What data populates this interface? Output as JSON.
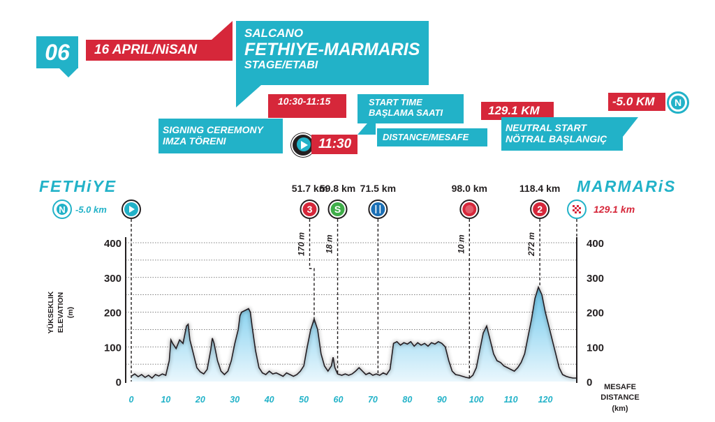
{
  "colors": {
    "teal": "#22b2c8",
    "red": "#d6273a",
    "dark": "#231f20",
    "fill_top": "#6ec8ec",
    "fill_bottom": "#eaf7fd",
    "green": "#3fae49",
    "blue": "#1b6fb5"
  },
  "header": {
    "stage_number": "06",
    "date": "16 APRIL/NiSAN",
    "sponsor": "SALCANO",
    "route": "FETHIYE-MARMARIS",
    "stage_label": "STAGE/ETABI"
  },
  "info": {
    "signing_time": "10:30-11:15",
    "signing_label_1": "SIGNING CEREMONY",
    "signing_label_2": "IMZA TÖRENI",
    "start_time": "11:30",
    "start_label_1": "START TIME",
    "start_label_2": "BAŞLAMA SAATI",
    "distance_value": "129.1 KM",
    "distance_label": "DISTANCE/MESAFE",
    "neutral_value": "-5.0 KM",
    "neutral_label_1": "NEUTRAL START",
    "neutral_label_2": "NÖTRAL BAŞLANGIÇ",
    "neutral_icon": "N"
  },
  "chart_data": {
    "type": "area",
    "start_city": "FETHiYE",
    "finish_city": "MARMARiS",
    "ylabel_1": "YÜKSEKLIK",
    "ylabel_2": "ELEVATION",
    "ylabel_3": "(m)",
    "xlabel_1": "MESAFE",
    "xlabel_2": "DISTANCE",
    "xlabel_3": "(km)",
    "xlim": [
      0,
      129.1
    ],
    "ylim": [
      0,
      400
    ],
    "x_ticks": [
      0,
      10,
      20,
      30,
      40,
      50,
      60,
      70,
      80,
      90,
      100,
      110,
      120
    ],
    "y_ticks": [
      0,
      100,
      200,
      300,
      400
    ],
    "gridlines": [
      50,
      100,
      150,
      200,
      250,
      300,
      350,
      400
    ],
    "neutral_label": "-5.0 km",
    "finish_label": "129.1 km",
    "markers": [
      {
        "type": "neutral",
        "x": -5.0,
        "symbol": "N"
      },
      {
        "type": "start",
        "x": 0,
        "symbol": "▶"
      },
      {
        "type": "climb",
        "x": 51.7,
        "label": "51.7 km",
        "symbol": "3",
        "alt_x": 53,
        "alt_label": "170 m",
        "alt": 170
      },
      {
        "type": "sprint",
        "x": 59.8,
        "label": "59.8 km",
        "symbol": "S",
        "alt_x": 60,
        "alt_label": "18 m",
        "alt": 18
      },
      {
        "type": "feed",
        "x": 71.5,
        "label": "71.5 km",
        "symbol": "🍴",
        "alt_x": 72,
        "alt_label": "",
        "alt": 20
      },
      {
        "type": "bonus",
        "x": 98.0,
        "label": "98.0 km",
        "symbol": "✸",
        "alt_x": 98,
        "alt_label": "10 m",
        "alt": 10
      },
      {
        "type": "climb",
        "x": 118.4,
        "label": "118.4 km",
        "symbol": "2",
        "alt_x": 118,
        "alt_label": "272 m",
        "alt": 272
      },
      {
        "type": "finish",
        "x": 129.1,
        "symbol": "▦"
      }
    ],
    "profile": [
      [
        0,
        15
      ],
      [
        1,
        22
      ],
      [
        2,
        14
      ],
      [
        3,
        20
      ],
      [
        4,
        12
      ],
      [
        5,
        18
      ],
      [
        6,
        10
      ],
      [
        7,
        20
      ],
      [
        8,
        16
      ],
      [
        9,
        22
      ],
      [
        10,
        18
      ],
      [
        11,
        60
      ],
      [
        11.5,
        120
      ],
      [
        12,
        110
      ],
      [
        13,
        95
      ],
      [
        14,
        120
      ],
      [
        15,
        110
      ],
      [
        16,
        160
      ],
      [
        16.5,
        165
      ],
      [
        17,
        120
      ],
      [
        18,
        80
      ],
      [
        19,
        40
      ],
      [
        20,
        28
      ],
      [
        21,
        22
      ],
      [
        22,
        35
      ],
      [
        23,
        90
      ],
      [
        23.5,
        125
      ],
      [
        24,
        110
      ],
      [
        25,
        60
      ],
      [
        26,
        30
      ],
      [
        27,
        20
      ],
      [
        28,
        30
      ],
      [
        29,
        60
      ],
      [
        30,
        110
      ],
      [
        31,
        150
      ],
      [
        31.5,
        190
      ],
      [
        32,
        200
      ],
      [
        33,
        205
      ],
      [
        34,
        210
      ],
      [
        34.5,
        200
      ],
      [
        35,
        160
      ],
      [
        36,
        90
      ],
      [
        37,
        40
      ],
      [
        38,
        25
      ],
      [
        39,
        20
      ],
      [
        40,
        30
      ],
      [
        41,
        22
      ],
      [
        42,
        25
      ],
      [
        43,
        20
      ],
      [
        44,
        15
      ],
      [
        45,
        25
      ],
      [
        46,
        20
      ],
      [
        47,
        15
      ],
      [
        48,
        20
      ],
      [
        49,
        30
      ],
      [
        50,
        45
      ],
      [
        51,
        100
      ],
      [
        52,
        150
      ],
      [
        53,
        180
      ],
      [
        54,
        150
      ],
      [
        55,
        80
      ],
      [
        56,
        45
      ],
      [
        57,
        30
      ],
      [
        58,
        45
      ],
      [
        58.5,
        70
      ],
      [
        59,
        40
      ],
      [
        59.8,
        22
      ],
      [
        61,
        18
      ],
      [
        62,
        22
      ],
      [
        63,
        18
      ],
      [
        64,
        22
      ],
      [
        65,
        30
      ],
      [
        66,
        40
      ],
      [
        67,
        30
      ],
      [
        68,
        20
      ],
      [
        69,
        25
      ],
      [
        70,
        18
      ],
      [
        71,
        22
      ],
      [
        72,
        18
      ],
      [
        73,
        25
      ],
      [
        74,
        20
      ],
      [
        75,
        35
      ],
      [
        76,
        110
      ],
      [
        77,
        115
      ],
      [
        78,
        105
      ],
      [
        79,
        112
      ],
      [
        80,
        108
      ],
      [
        81,
        115
      ],
      [
        82,
        102
      ],
      [
        83,
        112
      ],
      [
        84,
        105
      ],
      [
        85,
        110
      ],
      [
        86,
        102
      ],
      [
        87,
        112
      ],
      [
        88,
        108
      ],
      [
        89,
        115
      ],
      [
        90,
        110
      ],
      [
        91,
        100
      ],
      [
        92,
        60
      ],
      [
        93,
        30
      ],
      [
        94,
        20
      ],
      [
        95,
        18
      ],
      [
        96,
        15
      ],
      [
        97,
        12
      ],
      [
        98,
        10
      ],
      [
        99,
        18
      ],
      [
        100,
        40
      ],
      [
        101,
        90
      ],
      [
        102,
        140
      ],
      [
        103,
        160
      ],
      [
        104,
        120
      ],
      [
        105,
        80
      ],
      [
        106,
        60
      ],
      [
        107,
        55
      ],
      [
        108,
        45
      ],
      [
        109,
        40
      ],
      [
        110,
        35
      ],
      [
        111,
        30
      ],
      [
        112,
        40
      ],
      [
        113,
        55
      ],
      [
        114,
        80
      ],
      [
        115,
        130
      ],
      [
        116,
        180
      ],
      [
        117,
        240
      ],
      [
        118,
        272
      ],
      [
        119,
        250
      ],
      [
        120,
        200
      ],
      [
        121,
        160
      ],
      [
        122,
        120
      ],
      [
        123,
        80
      ],
      [
        124,
        40
      ],
      [
        125,
        20
      ],
      [
        126,
        15
      ],
      [
        127,
        12
      ],
      [
        128,
        10
      ],
      [
        129.1,
        10
      ]
    ]
  }
}
